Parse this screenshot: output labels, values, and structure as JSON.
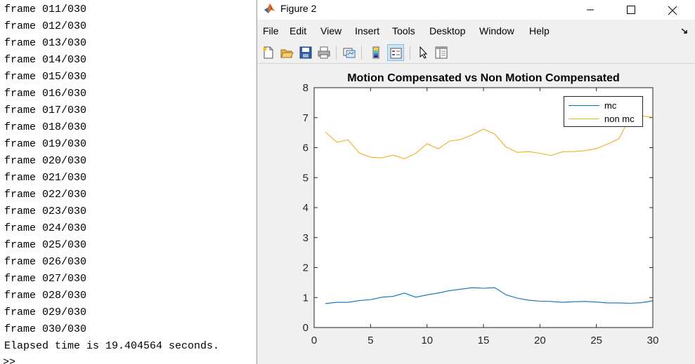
{
  "console": {
    "lines": [
      "frame 011/030",
      "frame 012/030",
      "frame 013/030",
      "frame 014/030",
      "frame 015/030",
      "frame 016/030",
      "frame 017/030",
      "frame 018/030",
      "frame 019/030",
      "frame 020/030",
      "frame 021/030",
      "frame 022/030",
      "frame 023/030",
      "frame 024/030",
      "frame 025/030",
      "frame 026/030",
      "frame 027/030",
      "frame 028/030",
      "frame 029/030",
      "frame 030/030",
      "Elapsed time is 19.404564 seconds."
    ],
    "prompt": ">>"
  },
  "window": {
    "title": "Figure 2",
    "menu": [
      "File",
      "Edit",
      "View",
      "Insert",
      "Tools",
      "Desktop",
      "Window",
      "Help"
    ],
    "toolbar": [
      "new-figure-icon",
      "open-file-icon",
      "save-icon",
      "print-icon",
      "link-plot-icon",
      "colorbar-icon",
      "legend-icon",
      "pointer-icon",
      "property-inspector-icon"
    ]
  },
  "colors": {
    "mc": "#0072bd",
    "nonmc": "#edb120",
    "zero": "#7e2f8e"
  },
  "chart_data": {
    "type": "line",
    "title": "Motion Compensated vs Non Motion Compensated",
    "xlabel": "",
    "ylabel": "",
    "xlim": [
      0,
      30
    ],
    "ylim": [
      0,
      8
    ],
    "xticks": [
      0,
      5,
      10,
      15,
      20,
      25,
      30
    ],
    "yticks": [
      0,
      1,
      2,
      3,
      4,
      5,
      6,
      7,
      8
    ],
    "legend_position": "top-right",
    "x": [
      1,
      2,
      3,
      4,
      5,
      6,
      7,
      8,
      9,
      10,
      11,
      12,
      13,
      14,
      15,
      16,
      17,
      18,
      19,
      20,
      21,
      22,
      23,
      24,
      25,
      26,
      27,
      28,
      29,
      30
    ],
    "series": [
      {
        "name": "mc",
        "color": "#0072bd",
        "values": [
          0.8,
          0.84,
          0.84,
          0.9,
          0.93,
          1.01,
          1.04,
          1.15,
          1.01,
          1.09,
          1.15,
          1.23,
          1.28,
          1.33,
          1.31,
          1.33,
          1.09,
          0.98,
          0.91,
          0.88,
          0.87,
          0.84,
          0.86,
          0.87,
          0.85,
          0.82,
          0.82,
          0.81,
          0.83,
          0.89
        ]
      },
      {
        "name": "non mc",
        "color": "#edb120",
        "values": [
          6.52,
          6.18,
          6.26,
          5.82,
          5.68,
          5.66,
          5.75,
          5.63,
          5.81,
          6.13,
          5.96,
          6.22,
          6.27,
          6.43,
          6.62,
          6.45,
          6.02,
          5.84,
          5.87,
          5.81,
          5.74,
          5.86,
          5.87,
          5.9,
          5.97,
          6.12,
          6.3,
          7.02,
          7.06,
          7.01
        ]
      },
      {
        "color": "#7e2f8e",
        "values": [
          0,
          0,
          0,
          0,
          0,
          0,
          0,
          0,
          0,
          0,
          0,
          0,
          0,
          0,
          0,
          0,
          0,
          0,
          0,
          0,
          0,
          0,
          0,
          0,
          0,
          0,
          0,
          0,
          0,
          0
        ]
      }
    ]
  }
}
